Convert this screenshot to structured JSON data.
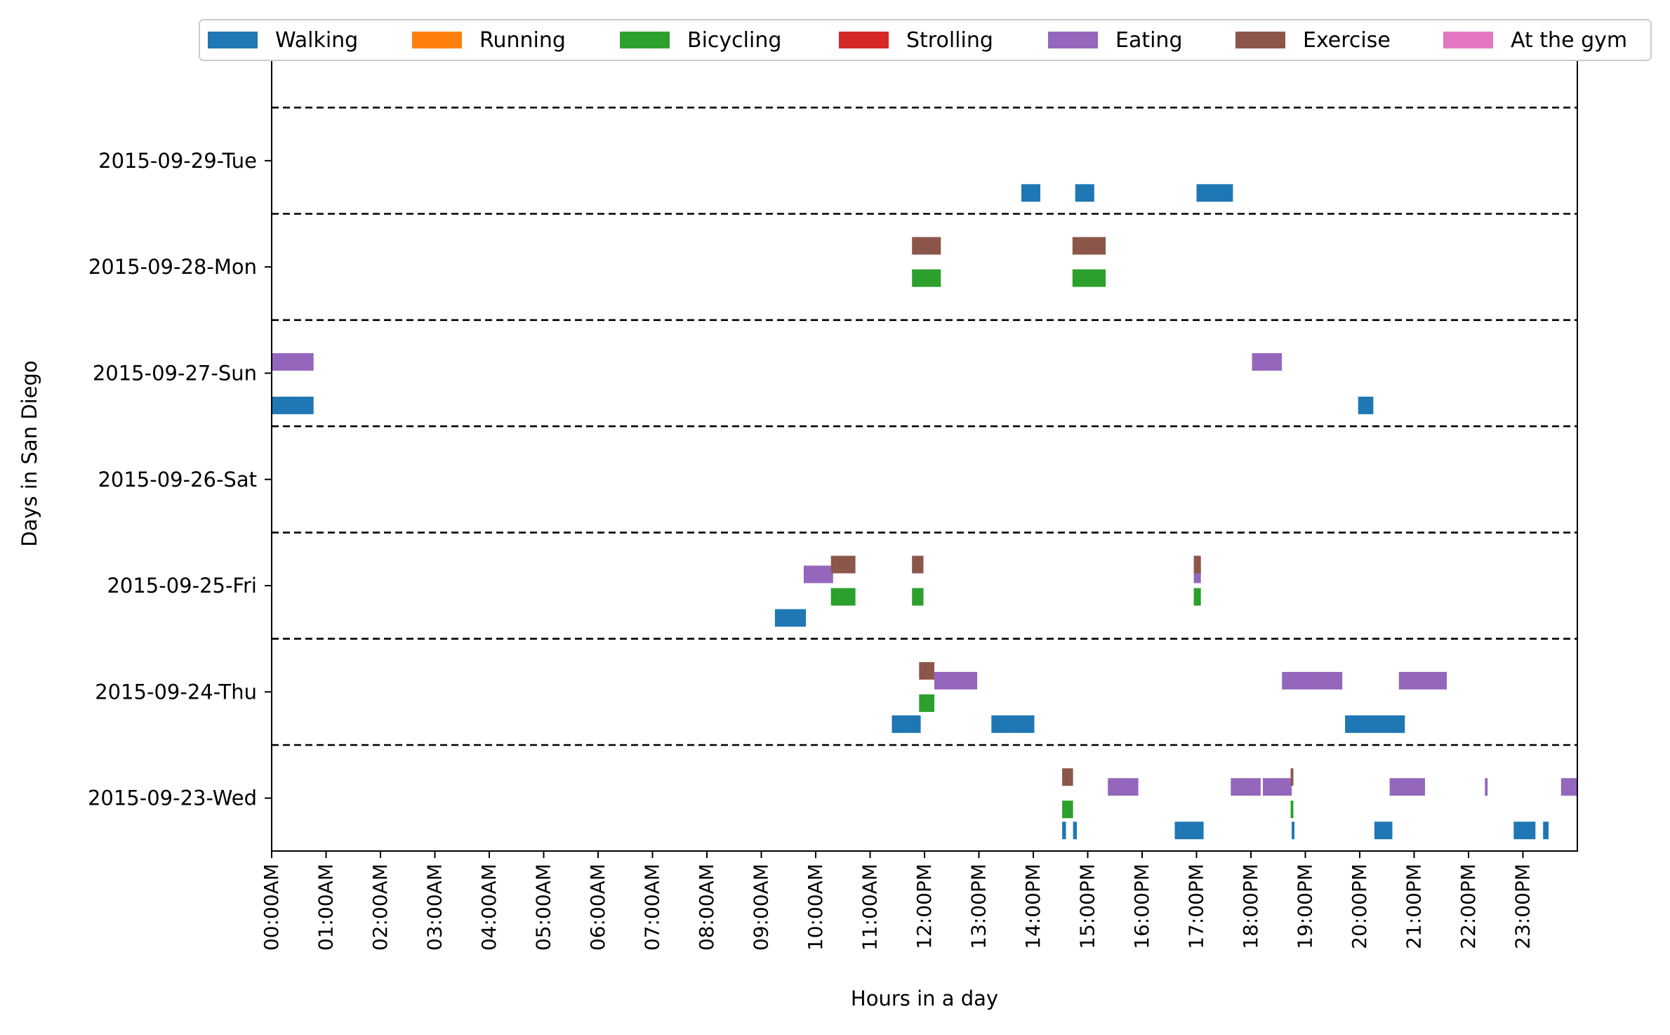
{
  "chart_data": {
    "type": "timeline",
    "title": "",
    "xlabel": "Hours in a day",
    "ylabel": "Days in San Diego",
    "xlim": [
      0,
      24
    ],
    "x_tick_labels": [
      "00:00AM",
      "01:00AM",
      "02:00AM",
      "03:00AM",
      "04:00AM",
      "05:00AM",
      "06:00AM",
      "07:00AM",
      "08:00AM",
      "09:00AM",
      "10:00AM",
      "11:00AM",
      "12:00PM",
      "13:00PM",
      "14:00PM",
      "15:00PM",
      "16:00PM",
      "17:00PM",
      "18:00PM",
      "19:00PM",
      "20:00PM",
      "21:00PM",
      "22:00PM",
      "23:00PM"
    ],
    "days": [
      "2015-09-23-Wed",
      "2015-09-24-Thu",
      "2015-09-25-Fri",
      "2015-09-26-Sat",
      "2015-09-27-Sun",
      "2015-09-28-Mon",
      "2015-09-29-Tue"
    ],
    "legend_position": "top",
    "day_separators": "dashed",
    "series": [
      {
        "name": "Walking",
        "color": "#1f77b4",
        "lane": 0,
        "segments": [
          {
            "day": "2015-09-23-Wed",
            "start": 14.53,
            "end": 14.6
          },
          {
            "day": "2015-09-23-Wed",
            "start": 14.73,
            "end": 14.8
          },
          {
            "day": "2015-09-23-Wed",
            "start": 16.6,
            "end": 17.13
          },
          {
            "day": "2015-09-23-Wed",
            "start": 18.75,
            "end": 18.8
          },
          {
            "day": "2015-09-23-Wed",
            "start": 20.27,
            "end": 20.6
          },
          {
            "day": "2015-09-23-Wed",
            "start": 22.83,
            "end": 23.23
          },
          {
            "day": "2015-09-23-Wed",
            "start": 23.37,
            "end": 23.47
          },
          {
            "day": "2015-09-24-Thu",
            "start": 11.4,
            "end": 11.93
          },
          {
            "day": "2015-09-24-Thu",
            "start": 13.23,
            "end": 14.02
          },
          {
            "day": "2015-09-24-Thu",
            "start": 19.73,
            "end": 20.83
          },
          {
            "day": "2015-09-25-Fri",
            "start": 9.25,
            "end": 9.82
          },
          {
            "day": "2015-09-27-Sun",
            "start": 0.0,
            "end": 0.77
          },
          {
            "day": "2015-09-27-Sun",
            "start": 19.97,
            "end": 20.25
          },
          {
            "day": "2015-09-29-Tue",
            "start": 13.78,
            "end": 14.13
          },
          {
            "day": "2015-09-29-Tue",
            "start": 14.77,
            "end": 15.12
          },
          {
            "day": "2015-09-29-Tue",
            "start": 17.0,
            "end": 17.67
          }
        ]
      },
      {
        "name": "Running",
        "color": "#ff7f0e",
        "lane": 1,
        "segments": []
      },
      {
        "name": "Bicycling",
        "color": "#2ca02c",
        "lane": 1,
        "segments": [
          {
            "day": "2015-09-23-Wed",
            "start": 14.53,
            "end": 14.73
          },
          {
            "day": "2015-09-23-Wed",
            "start": 18.73,
            "end": 18.78
          },
          {
            "day": "2015-09-24-Thu",
            "start": 11.9,
            "end": 12.18
          },
          {
            "day": "2015-09-25-Fri",
            "start": 10.28,
            "end": 10.73
          },
          {
            "day": "2015-09-25-Fri",
            "start": 11.77,
            "end": 11.98
          },
          {
            "day": "2015-09-25-Fri",
            "start": 16.95,
            "end": 17.08
          },
          {
            "day": "2015-09-28-Mon",
            "start": 11.77,
            "end": 12.3
          },
          {
            "day": "2015-09-28-Mon",
            "start": 14.72,
            "end": 15.33
          }
        ]
      },
      {
        "name": "Strolling",
        "color": "#d62728",
        "lane": 1,
        "segments": []
      },
      {
        "name": "Eating",
        "color": "#9467bd",
        "lane": 2,
        "segments": [
          {
            "day": "2015-09-23-Wed",
            "start": 15.37,
            "end": 15.93
          },
          {
            "day": "2015-09-23-Wed",
            "start": 17.63,
            "end": 18.18
          },
          {
            "day": "2015-09-23-Wed",
            "start": 18.22,
            "end": 18.75
          },
          {
            "day": "2015-09-23-Wed",
            "start": 20.55,
            "end": 21.2
          },
          {
            "day": "2015-09-23-Wed",
            "start": 22.3,
            "end": 22.35
          },
          {
            "day": "2015-09-23-Wed",
            "start": 23.7,
            "end": 24.0
          },
          {
            "day": "2015-09-24-Thu",
            "start": 12.18,
            "end": 12.97
          },
          {
            "day": "2015-09-24-Thu",
            "start": 18.57,
            "end": 19.68
          },
          {
            "day": "2015-09-24-Thu",
            "start": 20.72,
            "end": 21.6
          },
          {
            "day": "2015-09-25-Fri",
            "start": 9.78,
            "end": 10.32
          },
          {
            "day": "2015-09-25-Fri",
            "start": 16.95,
            "end": 17.08
          },
          {
            "day": "2015-09-27-Sun",
            "start": 0.0,
            "end": 0.77
          },
          {
            "day": "2015-09-27-Sun",
            "start": 18.02,
            "end": 18.57
          }
        ]
      },
      {
        "name": "Exercise",
        "color": "#8c564b",
        "lane": 3,
        "segments": [
          {
            "day": "2015-09-23-Wed",
            "start": 14.53,
            "end": 14.73
          },
          {
            "day": "2015-09-23-Wed",
            "start": 18.73,
            "end": 18.78
          },
          {
            "day": "2015-09-24-Thu",
            "start": 11.9,
            "end": 12.18
          },
          {
            "day": "2015-09-25-Fri",
            "start": 10.28,
            "end": 10.73
          },
          {
            "day": "2015-09-25-Fri",
            "start": 11.77,
            "end": 11.98
          },
          {
            "day": "2015-09-25-Fri",
            "start": 16.95,
            "end": 17.08
          },
          {
            "day": "2015-09-28-Mon",
            "start": 11.77,
            "end": 12.3
          },
          {
            "day": "2015-09-28-Mon",
            "start": 14.72,
            "end": 15.33
          }
        ]
      },
      {
        "name": "At the gym",
        "color": "#e377c2",
        "lane": 3,
        "segments": []
      }
    ]
  }
}
